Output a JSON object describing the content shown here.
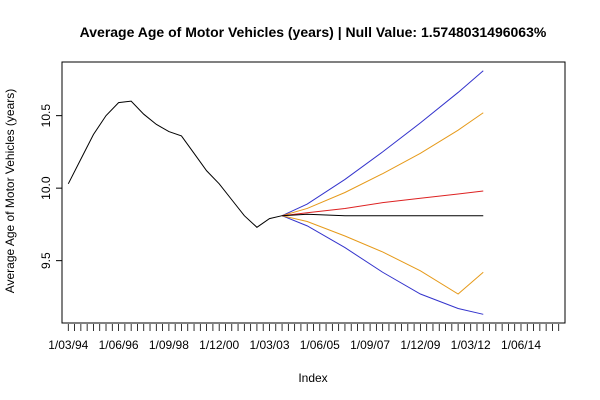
{
  "chart_data": {
    "type": "line",
    "title": "Average Age of Motor Vehicles (years) | Null Value: 1.5748031496063%",
    "xlabel": "Index",
    "ylabel": "Average Age of Motor Vehicles (years)",
    "xlim": [
      0.5,
      40.5
    ],
    "ylim": [
      9.07,
      10.87
    ],
    "yticks": [
      9.5,
      10.0,
      10.5
    ],
    "ytick_labels": [
      "9.5",
      "10.0",
      "10.5"
    ],
    "x_tick_labels": [
      {
        "index": 1,
        "label": "1/03/94"
      },
      {
        "index": 5,
        "label": "1/06/96"
      },
      {
        "index": 9,
        "label": "1/09/98"
      },
      {
        "index": 13,
        "label": "1/12/00"
      },
      {
        "index": 17,
        "label": "1/03/03"
      },
      {
        "index": 21,
        "label": "1/06/05"
      },
      {
        "index": 25,
        "label": "1/09/07"
      },
      {
        "index": 29,
        "label": "1/12/09"
      },
      {
        "index": 33,
        "label": "1/03/12"
      },
      {
        "index": 37,
        "label": "1/06/14"
      }
    ],
    "minor_ticks": {
      "from": 1,
      "to": 40,
      "step": 0.5
    },
    "grid": false,
    "series": [
      {
        "color": "#000000",
        "role": "observed",
        "points": [
          [
            1,
            10.03
          ],
          [
            2,
            10.2
          ],
          [
            3,
            10.37
          ],
          [
            4,
            10.5
          ],
          [
            5,
            10.59
          ],
          [
            6,
            10.6
          ],
          [
            7,
            10.51
          ],
          [
            8,
            10.44
          ],
          [
            9,
            10.39
          ],
          [
            10,
            10.36
          ],
          [
            11,
            10.24
          ],
          [
            12,
            10.12
          ],
          [
            13,
            10.03
          ],
          [
            14,
            9.92
          ],
          [
            15,
            9.81
          ],
          [
            16,
            9.73
          ],
          [
            17,
            9.79
          ],
          [
            18,
            9.81
          ]
        ]
      },
      {
        "color": "#000000",
        "role": "forecast",
        "points": [
          [
            18,
            9.81
          ],
          [
            20,
            9.82
          ],
          [
            23,
            9.81
          ],
          [
            26,
            9.81
          ],
          [
            29,
            9.81
          ],
          [
            32,
            9.81
          ],
          [
            34,
            9.81
          ]
        ]
      },
      {
        "color": "#dd2222",
        "role": "forecast-upper",
        "points": [
          [
            18,
            9.81
          ],
          [
            20,
            9.83
          ],
          [
            23,
            9.86
          ],
          [
            26,
            9.9
          ],
          [
            29,
            9.93
          ],
          [
            32,
            9.96
          ],
          [
            34,
            9.98
          ]
        ]
      },
      {
        "color": "#e69a1a",
        "role": "band-80-upper",
        "points": [
          [
            18,
            9.81
          ],
          [
            20,
            9.86
          ],
          [
            23,
            9.97
          ],
          [
            26,
            10.1
          ],
          [
            29,
            10.24
          ],
          [
            32,
            10.4
          ],
          [
            34,
            10.52
          ]
        ]
      },
      {
        "color": "#e69a1a",
        "role": "band-80-lower",
        "points": [
          [
            18,
            9.81
          ],
          [
            20,
            9.77
          ],
          [
            23,
            9.67
          ],
          [
            26,
            9.56
          ],
          [
            29,
            9.43
          ],
          [
            32,
            9.27
          ],
          [
            34,
            9.42
          ]
        ]
      },
      {
        "color": "#3333cc",
        "role": "band-95-upper",
        "points": [
          [
            18,
            9.81
          ],
          [
            20,
            9.89
          ],
          [
            23,
            10.06
          ],
          [
            26,
            10.25
          ],
          [
            29,
            10.45
          ],
          [
            32,
            10.66
          ],
          [
            34,
            10.81
          ]
        ]
      },
      {
        "color": "#3333cc",
        "role": "band-95-lower",
        "points": [
          [
            18,
            9.81
          ],
          [
            20,
            9.74
          ],
          [
            23,
            9.59
          ],
          [
            26,
            9.42
          ],
          [
            29,
            9.27
          ],
          [
            32,
            9.17
          ],
          [
            34,
            9.13
          ]
        ]
      }
    ]
  }
}
